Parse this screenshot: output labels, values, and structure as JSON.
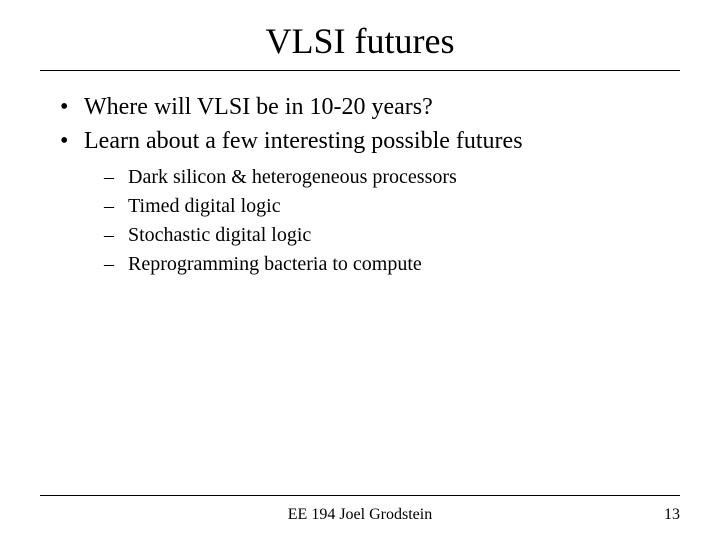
{
  "title": "VLSI futures",
  "bullets": [
    "Where will VLSI be in 10-20 years?",
    "Learn about a few interesting possible futures"
  ],
  "sub_bullets": [
    "Dark silicon & heterogeneous processors",
    "Timed digital logic",
    "Stochastic digital logic",
    "Reprogramming bacteria to compute"
  ],
  "footer": {
    "text": "EE 194 Joel Grodstein",
    "page_number": "13"
  },
  "styles": {
    "background_color": "#ffffff",
    "text_color": "#000000",
    "title_fontsize": 36,
    "bullet_fontsize": 24,
    "sub_bullet_fontsize": 20,
    "footer_fontsize": 13,
    "font_family": "Times New Roman"
  }
}
